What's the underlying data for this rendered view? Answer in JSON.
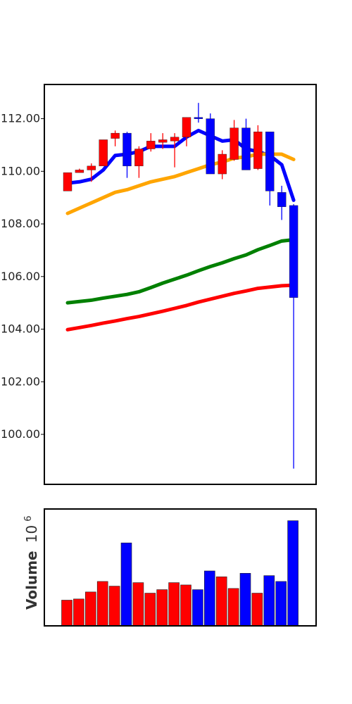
{
  "chart_data": [
    {
      "type": "candlestick",
      "title": "",
      "ylim": [
        98.1,
        113.3
      ],
      "y_ticks": [
        100,
        102,
        104,
        106,
        108,
        110,
        112
      ],
      "y_tick_labels": [
        "100.00",
        "102.00",
        "104.00",
        "106.00",
        "108.00",
        "110.00",
        "112.00"
      ],
      "grid": false,
      "colors": {
        "up": "#0000ff",
        "down": "#ff0000"
      },
      "candles": [
        {
          "open": 109.95,
          "high": 109.95,
          "low": 109.25,
          "close": 109.25,
          "dir": "down"
        },
        {
          "open": 110.05,
          "high": 110.1,
          "low": 109.95,
          "close": 109.95,
          "dir": "down"
        },
        {
          "open": 110.2,
          "high": 110.3,
          "low": 109.6,
          "close": 110.05,
          "dir": "down"
        },
        {
          "open": 111.2,
          "high": 111.2,
          "low": 110.2,
          "close": 110.2,
          "dir": "down"
        },
        {
          "open": 111.45,
          "high": 111.55,
          "low": 110.95,
          "close": 111.25,
          "dir": "down"
        },
        {
          "open": 110.2,
          "high": 111.5,
          "low": 109.75,
          "close": 111.45,
          "dir": "up"
        },
        {
          "open": 110.85,
          "high": 110.95,
          "low": 109.75,
          "close": 110.2,
          "dir": "down"
        },
        {
          "open": 111.15,
          "high": 111.45,
          "low": 110.75,
          "close": 110.85,
          "dir": "down"
        },
        {
          "open": 111.2,
          "high": 111.45,
          "low": 110.85,
          "close": 111.1,
          "dir": "down"
        },
        {
          "open": 111.3,
          "high": 111.45,
          "low": 110.15,
          "close": 111.15,
          "dir": "down"
        },
        {
          "open": 112.05,
          "high": 112.05,
          "low": 110.95,
          "close": 111.3,
          "dir": "down"
        },
        {
          "open": 112.0,
          "high": 112.6,
          "low": 111.85,
          "close": 112.05,
          "dir": "up"
        },
        {
          "open": 109.9,
          "high": 112.2,
          "low": 109.9,
          "close": 112.0,
          "dir": "up"
        },
        {
          "open": 110.65,
          "high": 110.8,
          "low": 109.7,
          "close": 109.9,
          "dir": "down"
        },
        {
          "open": 111.65,
          "high": 111.95,
          "low": 110.4,
          "close": 110.45,
          "dir": "down"
        },
        {
          "open": 110.05,
          "high": 112.0,
          "low": 110.05,
          "close": 111.65,
          "dir": "up"
        },
        {
          "open": 111.5,
          "high": 111.75,
          "low": 110.05,
          "close": 110.1,
          "dir": "down"
        },
        {
          "open": 109.25,
          "high": 111.5,
          "low": 108.7,
          "close": 111.5,
          "dir": "up"
        },
        {
          "open": 108.65,
          "high": 109.45,
          "low": 108.15,
          "close": 109.2,
          "dir": "up"
        },
        {
          "open": 105.2,
          "high": 108.75,
          "low": 98.7,
          "close": 108.7,
          "dir": "up"
        }
      ],
      "series": [
        {
          "color": "#0000ff",
          "values": [
            109.55,
            109.6,
            109.7,
            110.05,
            110.6,
            110.65,
            110.75,
            110.95,
            110.95,
            110.95,
            111.3,
            111.55,
            111.35,
            111.15,
            111.2,
            110.85,
            110.75,
            110.6,
            110.25,
            108.9
          ]
        },
        {
          "color": "#ffa500",
          "values": [
            108.4,
            108.6,
            108.8,
            109.0,
            109.2,
            109.3,
            109.45,
            109.6,
            109.7,
            109.8,
            109.95,
            110.1,
            110.25,
            110.35,
            110.5,
            110.55,
            110.65,
            110.65,
            110.65,
            110.45
          ]
        },
        {
          "color": "#008000",
          "values": [
            105.0,
            105.05,
            105.1,
            105.18,
            105.25,
            105.32,
            105.42,
            105.58,
            105.75,
            105.9,
            106.05,
            106.22,
            106.38,
            106.52,
            106.68,
            106.82,
            107.02,
            107.18,
            107.35,
            107.4
          ]
        },
        {
          "color": "#ff0000",
          "values": [
            103.98,
            104.06,
            104.14,
            104.23,
            104.31,
            104.4,
            104.48,
            104.58,
            104.68,
            104.79,
            104.9,
            105.03,
            105.14,
            105.25,
            105.36,
            105.45,
            105.55,
            105.6,
            105.65,
            105.67
          ]
        }
      ]
    },
    {
      "type": "bar",
      "ylabel": "Volume",
      "ylabel_exponent": "10",
      "ylabel_exponent_power": "6",
      "ylim": [
        0,
        1.0
      ],
      "colors": {
        "up": "#0000ff",
        "down": "#ff0000"
      },
      "values": [
        0.22,
        0.23,
        0.29,
        0.38,
        0.34,
        0.71,
        0.37,
        0.28,
        0.31,
        0.37,
        0.35,
        0.31,
        0.47,
        0.42,
        0.32,
        0.45,
        0.28,
        0.43,
        0.38,
        0.9
      ],
      "directions": [
        "down",
        "down",
        "down",
        "down",
        "down",
        "up",
        "down",
        "down",
        "down",
        "down",
        "down",
        "up",
        "up",
        "down",
        "down",
        "up",
        "down",
        "up",
        "up",
        "up"
      ]
    }
  ]
}
